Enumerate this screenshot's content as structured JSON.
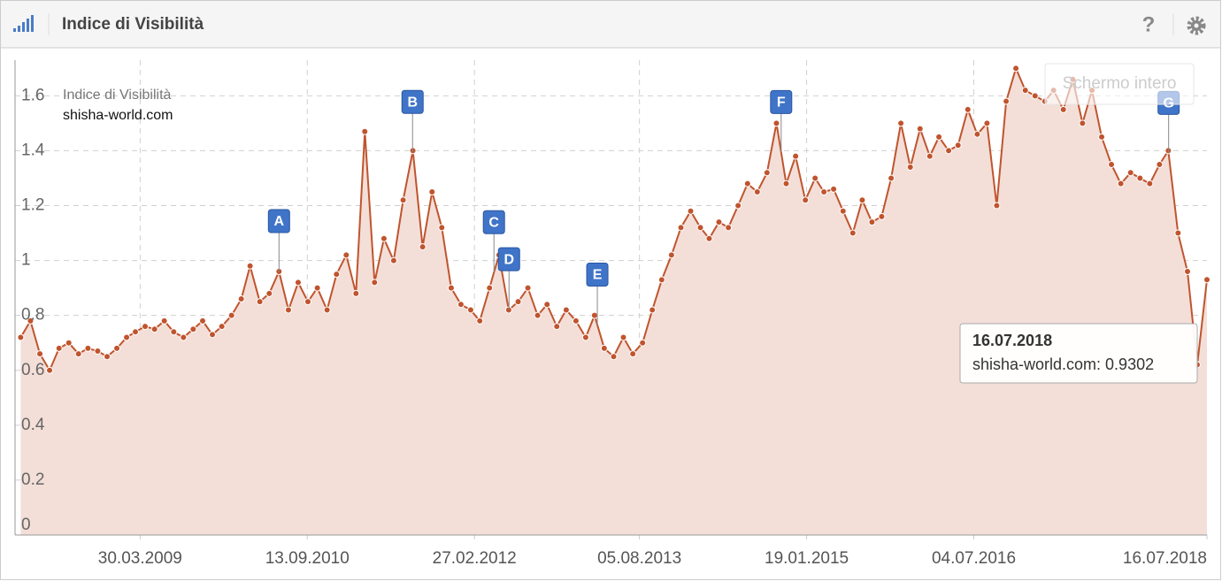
{
  "header": {
    "title": "Indice di Visibilità",
    "help": "?"
  },
  "fullscreen_button": "Schermo intero",
  "chart_data": {
    "type": "area",
    "title": "Indice di Visibilità",
    "x": [
      "2008-03-15",
      "2008-04-15",
      "2008-05-15",
      "2008-06-15",
      "2008-07-15",
      "2008-08-15",
      "2008-09-15",
      "2008-10-15",
      "2008-11-15",
      "2008-12-15",
      "2009-01-15",
      "2009-02-15",
      "2009-03-15",
      "2009-04-15",
      "2009-05-15",
      "2009-06-15",
      "2009-07-15",
      "2009-08-15",
      "2009-09-15",
      "2009-10-15",
      "2009-11-15",
      "2009-12-15",
      "2010-01-15",
      "2010-02-15",
      "2010-03-15",
      "2010-04-15",
      "2010-05-15",
      "2010-06-15",
      "2010-07-15",
      "2010-08-15",
      "2010-09-15",
      "2010-10-15",
      "2010-11-15",
      "2010-12-15",
      "2011-01-15",
      "2011-02-15",
      "2011-03-15",
      "2011-04-15",
      "2011-05-15",
      "2011-06-15",
      "2011-07-15",
      "2011-08-15",
      "2011-09-15",
      "2011-10-15",
      "2011-11-15",
      "2011-12-15",
      "2012-01-15",
      "2012-02-15",
      "2012-03-15",
      "2012-04-15",
      "2012-05-15",
      "2012-06-15",
      "2012-07-15",
      "2012-08-15",
      "2012-09-15",
      "2012-10-15",
      "2012-11-15",
      "2012-12-15",
      "2013-01-15",
      "2013-02-15",
      "2013-03-15",
      "2013-04-15",
      "2013-05-15",
      "2013-06-15",
      "2013-07-15",
      "2013-08-15",
      "2013-09-15",
      "2013-10-15",
      "2013-11-15",
      "2013-12-15",
      "2014-01-15",
      "2014-02-15",
      "2014-03-15",
      "2014-04-15",
      "2014-05-15",
      "2014-06-15",
      "2014-07-15",
      "2014-08-15",
      "2014-09-15",
      "2014-10-15",
      "2014-11-15",
      "2014-12-15",
      "2015-01-15",
      "2015-02-15",
      "2015-03-15",
      "2015-04-15",
      "2015-05-15",
      "2015-06-15",
      "2015-07-15",
      "2015-08-15",
      "2015-09-15",
      "2015-10-15",
      "2015-11-15",
      "2015-12-15",
      "2016-01-15",
      "2016-02-15",
      "2016-03-15",
      "2016-04-15",
      "2016-05-15",
      "2016-06-15",
      "2016-07-15",
      "2016-08-15",
      "2016-09-15",
      "2016-10-15",
      "2016-11-15",
      "2016-12-15",
      "2017-01-15",
      "2017-02-15",
      "2017-03-15",
      "2017-04-15",
      "2017-05-15",
      "2017-06-15",
      "2017-07-15",
      "2017-08-15",
      "2017-09-15",
      "2017-10-15",
      "2017-11-15",
      "2017-12-15",
      "2018-01-15",
      "2018-02-15",
      "2018-03-15",
      "2018-04-15",
      "2018-05-15",
      "2018-06-15",
      "2018-07-16"
    ],
    "series": [
      {
        "name": "shisha-world.com",
        "color": "#c0542e",
        "fill": "#f3dfd8",
        "values": [
          0.72,
          0.78,
          0.66,
          0.6,
          0.68,
          0.7,
          0.66,
          0.68,
          0.67,
          0.65,
          0.68,
          0.72,
          0.74,
          0.76,
          0.75,
          0.78,
          0.74,
          0.72,
          0.75,
          0.78,
          0.73,
          0.76,
          0.8,
          0.86,
          0.98,
          0.85,
          0.88,
          0.96,
          0.82,
          0.92,
          0.85,
          0.9,
          0.82,
          0.95,
          1.02,
          0.88,
          1.47,
          0.92,
          1.08,
          1.0,
          1.22,
          1.4,
          1.05,
          1.25,
          1.12,
          0.9,
          0.84,
          0.82,
          0.78,
          0.9,
          1.02,
          0.82,
          0.85,
          0.9,
          0.8,
          0.84,
          0.76,
          0.82,
          0.78,
          0.72,
          0.8,
          0.68,
          0.65,
          0.72,
          0.66,
          0.7,
          0.82,
          0.93,
          1.02,
          1.12,
          1.18,
          1.12,
          1.08,
          1.14,
          1.12,
          1.2,
          1.28,
          1.25,
          1.32,
          1.5,
          1.28,
          1.38,
          1.22,
          1.3,
          1.25,
          1.26,
          1.18,
          1.1,
          1.22,
          1.14,
          1.16,
          1.3,
          1.5,
          1.34,
          1.48,
          1.38,
          1.45,
          1.4,
          1.42,
          1.55,
          1.46,
          1.5,
          1.2,
          1.58,
          1.7,
          1.62,
          1.6,
          1.58,
          1.62,
          1.55,
          1.66,
          1.5,
          1.62,
          1.45,
          1.35,
          1.28,
          1.32,
          1.3,
          1.28,
          1.35,
          1.4,
          1.1,
          0.96,
          0.62,
          0.9302
        ]
      }
    ],
    "xlim": [
      "2008-02-26",
      "2018-07-16"
    ],
    "xticks": [
      {
        "value": "2009-03-30",
        "label": "30.03.2009"
      },
      {
        "value": "2010-09-13",
        "label": "13.09.2010"
      },
      {
        "value": "2012-02-27",
        "label": "27.02.2012"
      },
      {
        "value": "2013-08-05",
        "label": "05.08.2013"
      },
      {
        "value": "2015-01-19",
        "label": "19.01.2015"
      },
      {
        "value": "2016-07-04",
        "label": "04.07.2016"
      },
      {
        "value": "2018-07-16",
        "label": "16.07.2018"
      }
    ],
    "ylim": [
      0,
      1.73
    ],
    "yticks": [
      0,
      0.2,
      0.4,
      0.6,
      0.8,
      1,
      1.2,
      1.4,
      1.6
    ],
    "grid": true,
    "annotations": [
      {
        "date": "2010-06-15",
        "label": "A"
      },
      {
        "date": "2011-08-14",
        "label": "B"
      },
      {
        "date": "2012-04-29",
        "label": "C"
      },
      {
        "date": "2012-06-16",
        "label": "D"
      },
      {
        "date": "2013-03-24",
        "label": "E"
      },
      {
        "date": "2014-10-30",
        "label": "F"
      },
      {
        "date": "2018-03-16",
        "label": "G"
      }
    ],
    "tooltip": {
      "title": "16.07.2018",
      "text": "shisha-world.com: 0.9302"
    }
  }
}
